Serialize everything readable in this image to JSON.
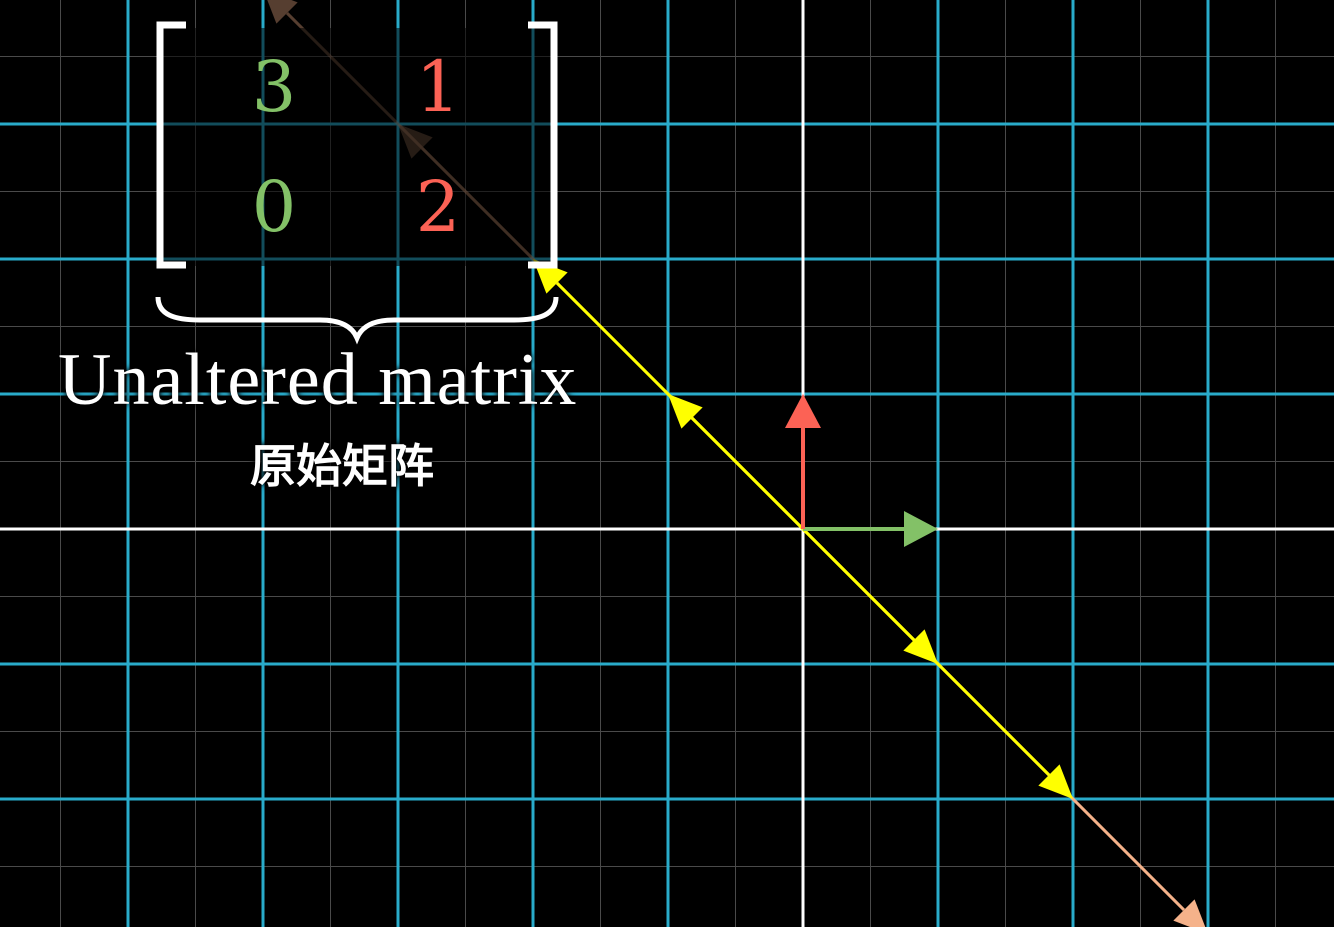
{
  "matrix": {
    "entries": [
      [
        3,
        1
      ],
      [
        0,
        2
      ]
    ],
    "column_colors": [
      "#83c167",
      "#fc6255"
    ]
  },
  "label": {
    "english": "Unaltered matrix",
    "chinese": "原始矩阵"
  },
  "colors": {
    "background": "#000000",
    "grid_major": "#29abca",
    "grid_minor": "#4a4a4a",
    "axes": "#ffffff",
    "basis_i": "#83c167",
    "basis_j": "#fc6255",
    "eigen_line": "#ffff00",
    "eigen_line_far": "#f5b28a",
    "bracket": "#ffffff"
  },
  "basis_vectors": [
    {
      "name": "i-hat",
      "components": [
        1,
        0
      ]
    },
    {
      "name": "j-hat",
      "components": [
        0,
        1
      ]
    }
  ],
  "eigen_vectors": [
    {
      "components": [
        -1,
        1
      ]
    },
    {
      "components": [
        1,
        -1
      ]
    },
    {
      "components": [
        2,
        -2
      ]
    },
    {
      "components": [
        -2,
        2
      ]
    },
    {
      "components": [
        3,
        -3
      ]
    },
    {
      "components": [
        -3,
        3
      ]
    },
    {
      "components": [
        -4,
        4
      ]
    }
  ]
}
